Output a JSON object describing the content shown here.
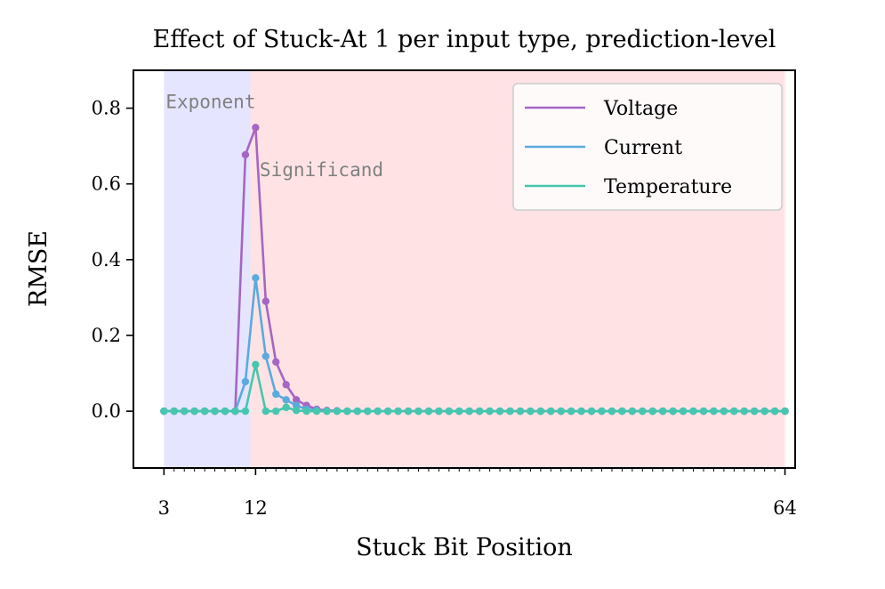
{
  "chart_data": {
    "type": "line",
    "title": "Effect of Stuck-At 1 per input type, prediction-level",
    "xlabel": "Stuck Bit Position",
    "ylabel": "RMSE",
    "xlim": [
      0,
      65
    ],
    "ylim": [
      -0.15,
      0.9
    ],
    "xticks": [
      3,
      12,
      64
    ],
    "xticks_minor": "every integer 3..64",
    "yticks": [
      0.0,
      0.2,
      0.4,
      0.6,
      0.8
    ],
    "grid": false,
    "legend": "top-right",
    "regions": [
      {
        "label": "Exponent",
        "x_start": 3,
        "x_end": 11.5,
        "color": "#e5e5ff"
      },
      {
        "label": "Significand",
        "x_start": 11.5,
        "x_end": 64,
        "color": "#ffe3e4"
      }
    ],
    "series": [
      {
        "name": "Voltage",
        "color": "#a566c4",
        "x_start": 3,
        "y": [
          0,
          0,
          0,
          0,
          0,
          0,
          0,
          0,
          0.677,
          0.749,
          0.29,
          0.13,
          0.07,
          0.03,
          0.015,
          0.005,
          0.002,
          0.001,
          0,
          0,
          0,
          0,
          0,
          0,
          0,
          0,
          0,
          0,
          0,
          0,
          0,
          0,
          0,
          0,
          0,
          0,
          0,
          0,
          0,
          0,
          0,
          0,
          0,
          0,
          0,
          0,
          0,
          0,
          0,
          0,
          0,
          0,
          0,
          0,
          0,
          0,
          0,
          0,
          0,
          0,
          0,
          0
        ]
      },
      {
        "name": "Current",
        "color": "#5aabde",
        "x_start": 3,
        "y": [
          0,
          0,
          0,
          0,
          0,
          0,
          0,
          0,
          0.078,
          0.352,
          0.145,
          0.045,
          0.03,
          0.015,
          0.005,
          0.002,
          0,
          0,
          0,
          0,
          0,
          0,
          0,
          0,
          0,
          0,
          0,
          0,
          0,
          0,
          0,
          0,
          0,
          0,
          0,
          0,
          0,
          0,
          0,
          0,
          0,
          0,
          0,
          0,
          0,
          0,
          0,
          0,
          0,
          0,
          0,
          0,
          0,
          0,
          0,
          0,
          0,
          0,
          0,
          0,
          0,
          0
        ]
      },
      {
        "name": "Temperature",
        "color": "#46c6ae",
        "x_start": 3,
        "y": [
          0,
          0,
          0,
          0,
          0,
          0,
          0,
          0,
          0,
          0.123,
          0,
          0,
          0.01,
          0.002,
          0,
          0,
          0,
          0,
          0,
          0,
          0,
          0,
          0,
          0,
          0,
          0,
          0,
          0,
          0,
          0,
          0,
          0,
          0,
          0,
          0,
          0,
          0,
          0,
          0,
          0,
          0,
          0,
          0,
          0,
          0,
          0,
          0,
          0,
          0,
          0,
          0,
          0,
          0,
          0,
          0,
          0,
          0,
          0,
          0,
          0,
          0,
          0
        ]
      }
    ]
  }
}
